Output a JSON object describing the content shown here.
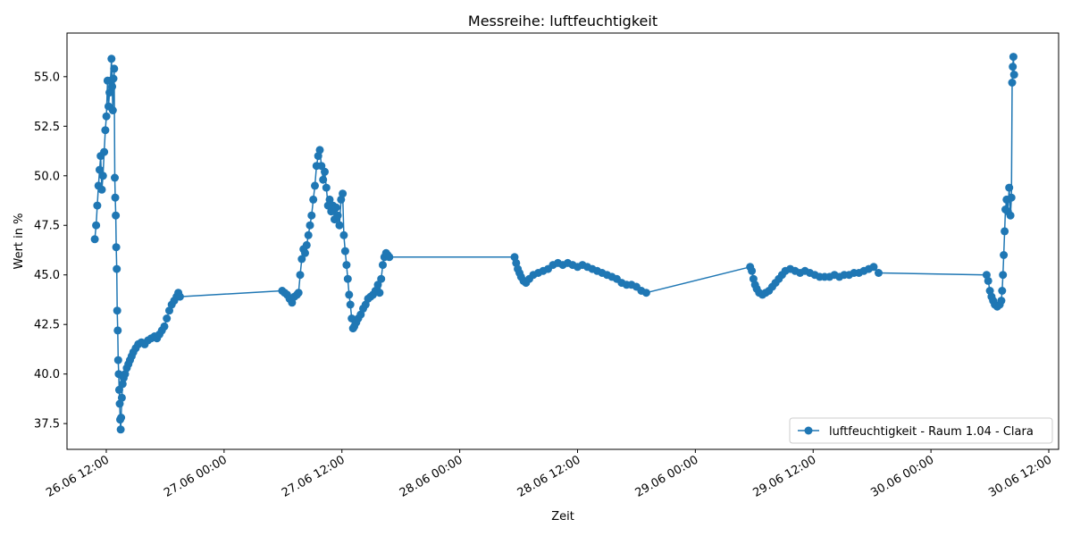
{
  "chart_data": {
    "type": "line",
    "title": "Messreihe: luftfeuchtigkeit",
    "xlabel": "Zeit",
    "ylabel": "Wert in %",
    "xlim": [
      "2025-06-26T08:00",
      "2025-06-30T13:00"
    ],
    "ylim": [
      36.2,
      57.2
    ],
    "x_ticks": [
      {
        "t": "2025-06-26T12:00",
        "label": "26.06 12:00"
      },
      {
        "t": "2025-06-27T00:00",
        "label": "27.06 00:00"
      },
      {
        "t": "2025-06-27T12:00",
        "label": "27.06 12:00"
      },
      {
        "t": "2025-06-28T00:00",
        "label": "28.06 00:00"
      },
      {
        "t": "2025-06-28T12:00",
        "label": "28.06 12:00"
      },
      {
        "t": "2025-06-29T00:00",
        "label": "29.06 00:00"
      },
      {
        "t": "2025-06-29T12:00",
        "label": "29.06 12:00"
      },
      {
        "t": "2025-06-30T00:00",
        "label": "30.06 00:00"
      },
      {
        "t": "2025-06-30T12:00",
        "label": "30.06 12:00"
      }
    ],
    "y_ticks": [
      37.5,
      40.0,
      42.5,
      45.0,
      47.5,
      50.0,
      52.5,
      55.0
    ],
    "y_tick_labels": [
      "37.5",
      "40.0",
      "42.5",
      "45.0",
      "47.5",
      "50.0",
      "52.5",
      "55.0"
    ],
    "grid": false,
    "legend_position": "lower-right",
    "series": [
      {
        "name": "luftfeuchtigkeit - Raum 1.04 - Clara",
        "color": "#1f77b4",
        "marker": "circle",
        "points": [
          [
            "2025-06-26T10:50",
            46.8
          ],
          [
            "2025-06-26T10:58",
            47.5
          ],
          [
            "2025-06-26T11:05",
            48.5
          ],
          [
            "2025-06-26T11:12",
            49.5
          ],
          [
            "2025-06-26T11:19",
            50.3
          ],
          [
            "2025-06-26T11:26",
            51.0
          ],
          [
            "2025-06-26T11:33",
            49.3
          ],
          [
            "2025-06-26T11:40",
            50.0
          ],
          [
            "2025-06-26T11:47",
            51.2
          ],
          [
            "2025-06-26T11:54",
            52.3
          ],
          [
            "2025-06-26T12:01",
            53.0
          ],
          [
            "2025-06-26T12:08",
            54.8
          ],
          [
            "2025-06-26T12:14",
            53.5
          ],
          [
            "2025-06-26T12:20",
            54.2
          ],
          [
            "2025-06-26T12:26",
            54.8
          ],
          [
            "2025-06-26T12:32",
            55.9
          ],
          [
            "2025-06-26T12:36",
            54.5
          ],
          [
            "2025-06-26T12:40",
            53.3
          ],
          [
            "2025-06-26T12:44",
            54.9
          ],
          [
            "2025-06-26T12:48",
            55.4
          ],
          [
            "2025-06-26T12:52",
            49.9
          ],
          [
            "2025-06-26T12:55",
            48.9
          ],
          [
            "2025-06-26T12:58",
            48.0
          ],
          [
            "2025-06-26T13:01",
            46.4
          ],
          [
            "2025-06-26T13:04",
            45.3
          ],
          [
            "2025-06-26T13:07",
            43.2
          ],
          [
            "2025-06-26T13:10",
            42.2
          ],
          [
            "2025-06-26T13:13",
            40.7
          ],
          [
            "2025-06-26T13:16",
            40.0
          ],
          [
            "2025-06-26T13:19",
            39.2
          ],
          [
            "2025-06-26T13:22",
            38.5
          ],
          [
            "2025-06-26T13:25",
            37.7
          ],
          [
            "2025-06-26T13:28",
            37.2
          ],
          [
            "2025-06-26T13:31",
            37.8
          ],
          [
            "2025-06-26T13:35",
            38.8
          ],
          [
            "2025-06-26T13:40",
            39.5
          ],
          [
            "2025-06-26T13:46",
            39.8
          ],
          [
            "2025-06-26T13:55",
            40.0
          ],
          [
            "2025-06-26T14:05",
            40.3
          ],
          [
            "2025-06-26T14:15",
            40.5
          ],
          [
            "2025-06-26T14:25",
            40.7
          ],
          [
            "2025-06-26T14:35",
            40.9
          ],
          [
            "2025-06-26T14:45",
            41.1
          ],
          [
            "2025-06-26T15:00",
            41.3
          ],
          [
            "2025-06-26T15:15",
            41.5
          ],
          [
            "2025-06-26T15:35",
            41.6
          ],
          [
            "2025-06-26T15:55",
            41.5
          ],
          [
            "2025-06-26T16:15",
            41.7
          ],
          [
            "2025-06-26T16:35",
            41.8
          ],
          [
            "2025-06-26T16:55",
            41.9
          ],
          [
            "2025-06-26T17:10",
            41.8
          ],
          [
            "2025-06-26T17:25",
            42.0
          ],
          [
            "2025-06-26T17:40",
            42.2
          ],
          [
            "2025-06-26T17:55",
            42.4
          ],
          [
            "2025-06-26T18:10",
            42.8
          ],
          [
            "2025-06-26T18:25",
            43.2
          ],
          [
            "2025-06-26T18:40",
            43.5
          ],
          [
            "2025-06-26T18:55",
            43.7
          ],
          [
            "2025-06-26T19:10",
            43.9
          ],
          [
            "2025-06-26T19:20",
            44.1
          ],
          [
            "2025-06-26T19:30",
            43.9
          ],
          [
            "2025-06-27T05:55",
            44.2
          ],
          [
            "2025-06-27T06:10",
            44.1
          ],
          [
            "2025-06-27T06:25",
            44.0
          ],
          [
            "2025-06-27T06:40",
            43.8
          ],
          [
            "2025-06-27T06:55",
            43.6
          ],
          [
            "2025-06-27T07:10",
            43.9
          ],
          [
            "2025-06-27T07:25",
            44.0
          ],
          [
            "2025-06-27T07:35",
            44.1
          ],
          [
            "2025-06-27T07:45",
            45.0
          ],
          [
            "2025-06-27T07:55",
            45.8
          ],
          [
            "2025-06-27T08:05",
            46.3
          ],
          [
            "2025-06-27T08:15",
            46.1
          ],
          [
            "2025-06-27T08:25",
            46.5
          ],
          [
            "2025-06-27T08:35",
            47.0
          ],
          [
            "2025-06-27T08:45",
            47.5
          ],
          [
            "2025-06-27T08:55",
            48.0
          ],
          [
            "2025-06-27T09:05",
            48.8
          ],
          [
            "2025-06-27T09:15",
            49.5
          ],
          [
            "2025-06-27T09:25",
            50.5
          ],
          [
            "2025-06-27T09:35",
            51.0
          ],
          [
            "2025-06-27T09:45",
            51.3
          ],
          [
            "2025-06-27T09:55",
            50.5
          ],
          [
            "2025-06-27T10:05",
            49.8
          ],
          [
            "2025-06-27T10:15",
            50.2
          ],
          [
            "2025-06-27T10:25",
            49.4
          ],
          [
            "2025-06-27T10:35",
            48.5
          ],
          [
            "2025-06-27T10:45",
            48.8
          ],
          [
            "2025-06-27T10:55",
            48.2
          ],
          [
            "2025-06-27T11:05",
            48.5
          ],
          [
            "2025-06-27T11:15",
            47.8
          ],
          [
            "2025-06-27T11:25",
            48.4
          ],
          [
            "2025-06-27T11:35",
            48.0
          ],
          [
            "2025-06-27T11:45",
            47.5
          ],
          [
            "2025-06-27T11:55",
            48.8
          ],
          [
            "2025-06-27T12:05",
            49.1
          ],
          [
            "2025-06-27T12:12",
            47.0
          ],
          [
            "2025-06-27T12:20",
            46.2
          ],
          [
            "2025-06-27T12:28",
            45.5
          ],
          [
            "2025-06-27T12:36",
            44.8
          ],
          [
            "2025-06-27T12:44",
            44.0
          ],
          [
            "2025-06-27T12:52",
            43.5
          ],
          [
            "2025-06-27T13:00",
            42.8
          ],
          [
            "2025-06-27T13:08",
            42.3
          ],
          [
            "2025-06-27T13:16",
            42.4
          ],
          [
            "2025-06-27T13:28",
            42.6
          ],
          [
            "2025-06-27T13:40",
            42.8
          ],
          [
            "2025-06-27T13:55",
            43.0
          ],
          [
            "2025-06-27T14:10",
            43.3
          ],
          [
            "2025-06-27T14:25",
            43.5
          ],
          [
            "2025-06-27T14:40",
            43.8
          ],
          [
            "2025-06-27T14:55",
            43.9
          ],
          [
            "2025-06-27T15:10",
            44.0
          ],
          [
            "2025-06-27T15:25",
            44.2
          ],
          [
            "2025-06-27T15:40",
            44.5
          ],
          [
            "2025-06-27T15:50",
            44.1
          ],
          [
            "2025-06-27T16:00",
            44.8
          ],
          [
            "2025-06-27T16:10",
            45.5
          ],
          [
            "2025-06-27T16:20",
            45.9
          ],
          [
            "2025-06-27T16:30",
            46.1
          ],
          [
            "2025-06-27T16:40",
            46.0
          ],
          [
            "2025-06-27T16:50",
            45.9
          ],
          [
            "2025-06-28T05:35",
            45.9
          ],
          [
            "2025-06-28T05:45",
            45.6
          ],
          [
            "2025-06-28T05:55",
            45.3
          ],
          [
            "2025-06-28T06:05",
            45.1
          ],
          [
            "2025-06-28T06:15",
            44.9
          ],
          [
            "2025-06-28T06:30",
            44.7
          ],
          [
            "2025-06-28T06:45",
            44.6
          ],
          [
            "2025-06-28T07:05",
            44.8
          ],
          [
            "2025-06-28T07:30",
            45.0
          ],
          [
            "2025-06-28T08:00",
            45.1
          ],
          [
            "2025-06-28T08:30",
            45.2
          ],
          [
            "2025-06-28T09:00",
            45.3
          ],
          [
            "2025-06-28T09:30",
            45.5
          ],
          [
            "2025-06-28T10:00",
            45.6
          ],
          [
            "2025-06-28T10:30",
            45.5
          ],
          [
            "2025-06-28T11:00",
            45.6
          ],
          [
            "2025-06-28T11:30",
            45.5
          ],
          [
            "2025-06-28T12:00",
            45.4
          ],
          [
            "2025-06-28T12:30",
            45.5
          ],
          [
            "2025-06-28T13:00",
            45.4
          ],
          [
            "2025-06-28T13:30",
            45.3
          ],
          [
            "2025-06-28T14:00",
            45.2
          ],
          [
            "2025-06-28T14:30",
            45.1
          ],
          [
            "2025-06-28T15:00",
            45.0
          ],
          [
            "2025-06-28T15:30",
            44.9
          ],
          [
            "2025-06-28T16:00",
            44.8
          ],
          [
            "2025-06-28T16:30",
            44.6
          ],
          [
            "2025-06-28T17:00",
            44.5
          ],
          [
            "2025-06-28T17:30",
            44.5
          ],
          [
            "2025-06-28T18:00",
            44.4
          ],
          [
            "2025-06-28T18:30",
            44.2
          ],
          [
            "2025-06-28T19:00",
            44.1
          ],
          [
            "2025-06-29T05:35",
            45.4
          ],
          [
            "2025-06-29T05:45",
            45.2
          ],
          [
            "2025-06-29T05:55",
            44.8
          ],
          [
            "2025-06-29T06:05",
            44.5
          ],
          [
            "2025-06-29T06:15",
            44.3
          ],
          [
            "2025-06-29T06:30",
            44.1
          ],
          [
            "2025-06-29T06:50",
            44.0
          ],
          [
            "2025-06-29T07:10",
            44.1
          ],
          [
            "2025-06-29T07:30",
            44.2
          ],
          [
            "2025-06-29T07:50",
            44.4
          ],
          [
            "2025-06-29T08:10",
            44.6
          ],
          [
            "2025-06-29T08:30",
            44.8
          ],
          [
            "2025-06-29T08:50",
            45.0
          ],
          [
            "2025-06-29T09:10",
            45.2
          ],
          [
            "2025-06-29T09:40",
            45.3
          ],
          [
            "2025-06-29T10:10",
            45.2
          ],
          [
            "2025-06-29T10:40",
            45.1
          ],
          [
            "2025-06-29T11:10",
            45.2
          ],
          [
            "2025-06-29T11:40",
            45.1
          ],
          [
            "2025-06-29T12:10",
            45.0
          ],
          [
            "2025-06-29T12:40",
            44.9
          ],
          [
            "2025-06-29T13:10",
            44.9
          ],
          [
            "2025-06-29T13:40",
            44.9
          ],
          [
            "2025-06-29T14:10",
            45.0
          ],
          [
            "2025-06-29T14:40",
            44.9
          ],
          [
            "2025-06-29T15:10",
            45.0
          ],
          [
            "2025-06-29T15:40",
            45.0
          ],
          [
            "2025-06-29T16:10",
            45.1
          ],
          [
            "2025-06-29T16:40",
            45.1
          ],
          [
            "2025-06-29T17:10",
            45.2
          ],
          [
            "2025-06-29T17:40",
            45.3
          ],
          [
            "2025-06-29T18:10",
            45.4
          ],
          [
            "2025-06-29T18:40",
            45.1
          ],
          [
            "2025-06-30T05:40",
            45.0
          ],
          [
            "2025-06-30T05:50",
            44.7
          ],
          [
            "2025-06-30T06:00",
            44.2
          ],
          [
            "2025-06-30T06:10",
            43.9
          ],
          [
            "2025-06-30T06:20",
            43.7
          ],
          [
            "2025-06-30T06:30",
            43.5
          ],
          [
            "2025-06-30T06:45",
            43.4
          ],
          [
            "2025-06-30T07:00",
            43.5
          ],
          [
            "2025-06-30T07:10",
            43.7
          ],
          [
            "2025-06-30T07:15",
            44.2
          ],
          [
            "2025-06-30T07:20",
            45.0
          ],
          [
            "2025-06-30T07:25",
            46.0
          ],
          [
            "2025-06-30T07:30",
            47.2
          ],
          [
            "2025-06-30T07:35",
            48.3
          ],
          [
            "2025-06-30T07:42",
            48.8
          ],
          [
            "2025-06-30T07:50",
            48.2
          ],
          [
            "2025-06-30T07:58",
            49.4
          ],
          [
            "2025-06-30T08:06",
            48.0
          ],
          [
            "2025-06-30T08:12",
            48.9
          ],
          [
            "2025-06-30T08:16",
            54.7
          ],
          [
            "2025-06-30T08:20",
            55.5
          ],
          [
            "2025-06-30T08:24",
            56.0
          ],
          [
            "2025-06-30T08:28",
            55.1
          ]
        ]
      }
    ]
  }
}
